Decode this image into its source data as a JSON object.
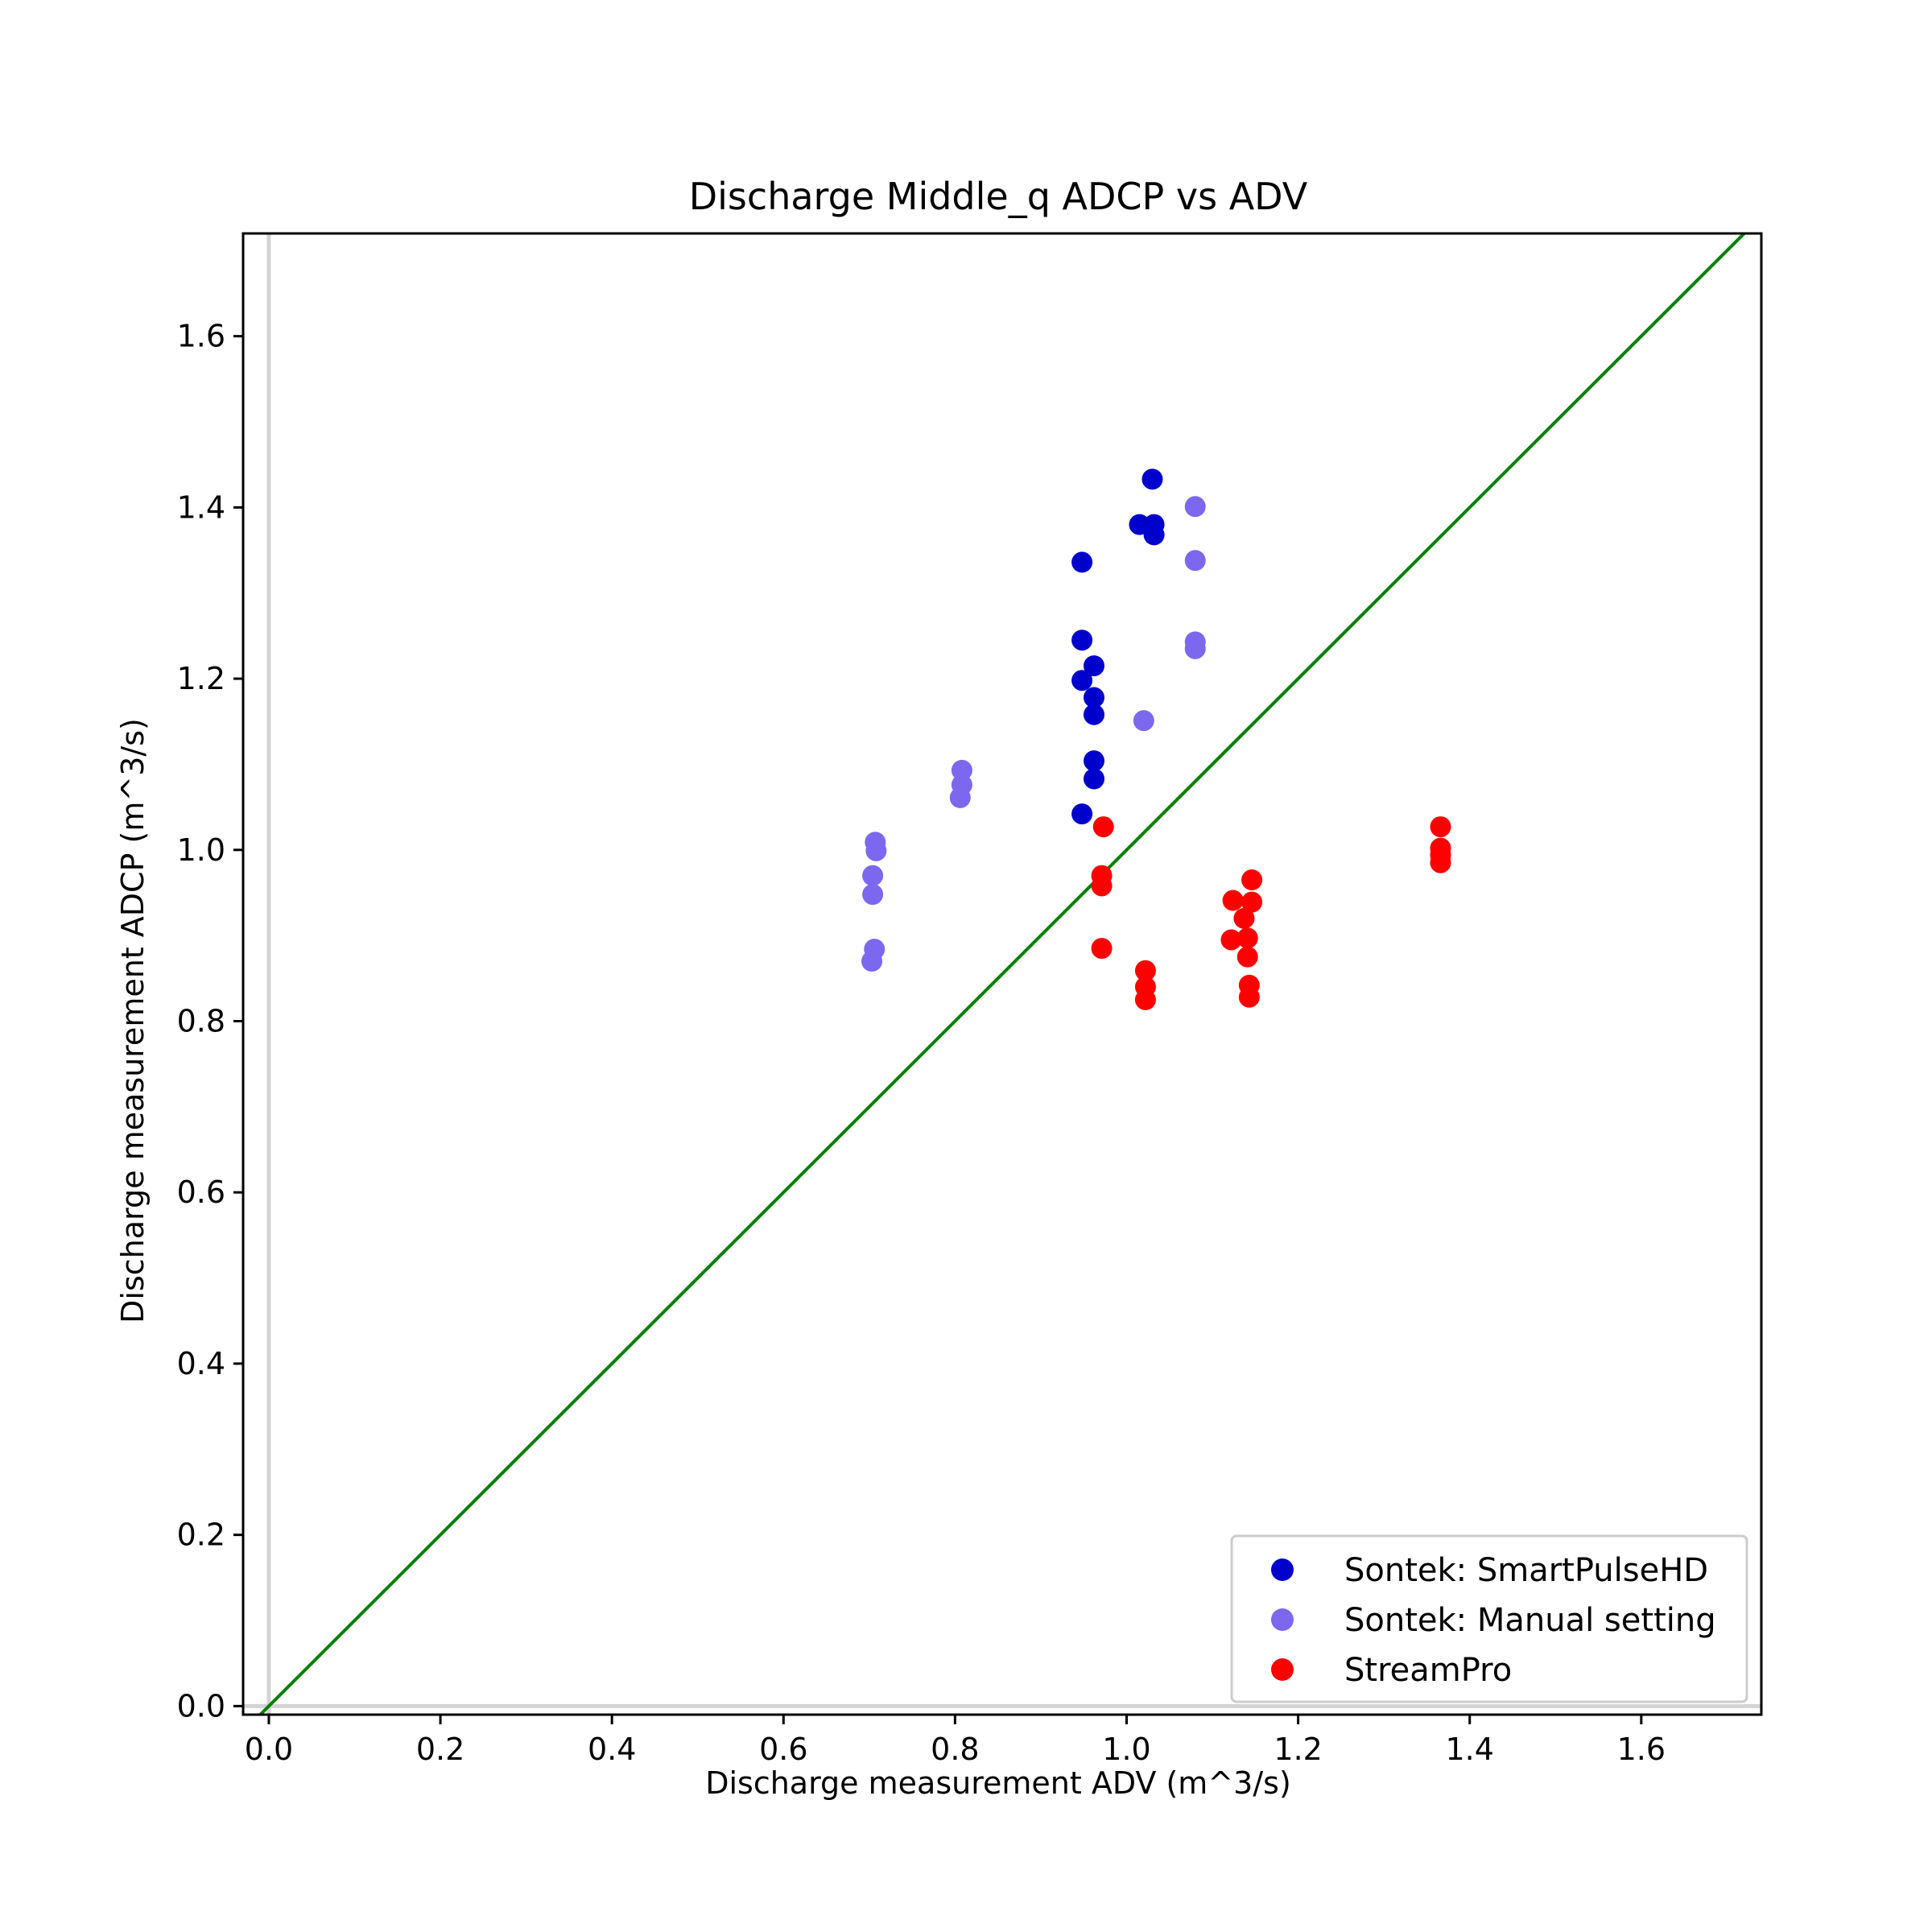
{
  "chart_data": {
    "type": "scatter",
    "title": "Discharge Middle_q ADCP  vs ADV",
    "xlabel": "Discharge measurement ADV (m^3/s)",
    "ylabel": "Discharge measurement ADCP (m^3/s)",
    "xlim": [
      -0.03,
      1.74
    ],
    "ylim": [
      -0.01,
      1.72
    ],
    "xticks": [
      "0.0",
      "0.2",
      "0.4",
      "0.6",
      "0.8",
      "1.0",
      "1.2",
      "1.4",
      "1.6"
    ],
    "yticks": [
      "0.0",
      "0.2",
      "0.4",
      "0.6",
      "0.8",
      "1.0",
      "1.2",
      "1.4",
      "1.6"
    ],
    "grid": false,
    "legend_position": "bottom-right",
    "reference_lines": [
      {
        "kind": "identity",
        "color": "#008000"
      },
      {
        "kind": "x=0",
        "color": "#d3d3d3"
      },
      {
        "kind": "y=0",
        "color": "#d3d3d3"
      }
    ],
    "series": [
      {
        "name": "Sontek: SmartPulseHD",
        "color": "#0000cd",
        "x": [
          1.03,
          1.015,
          1.032,
          1.032,
          0.948,
          0.948,
          0.962,
          0.948,
          0.962,
          0.962,
          0.962,
          0.962,
          0.948
        ],
        "y": [
          1.433,
          1.38,
          1.38,
          1.368,
          1.336,
          1.245,
          1.215,
          1.198,
          1.178,
          1.158,
          1.104,
          1.083,
          1.042
        ]
      },
      {
        "name": "Sontek: Manual setting",
        "color": "#7b68ee",
        "x": [
          1.08,
          1.08,
          1.08,
          1.08,
          1.02,
          0.808,
          0.808,
          0.806,
          0.707,
          0.708,
          0.704,
          0.704,
          0.706,
          0.703
        ],
        "y": [
          1.401,
          1.338,
          1.243,
          1.235,
          1.151,
          1.093,
          1.076,
          1.061,
          1.009,
          0.999,
          0.97,
          0.948,
          0.884,
          0.87
        ]
      },
      {
        "name": "StreamPro",
        "color": "#ff0000",
        "x": [
          0.973,
          0.971,
          0.971,
          0.971,
          1.022,
          1.022,
          1.022,
          1.146,
          1.124,
          1.146,
          1.137,
          1.122,
          1.141,
          1.141,
          1.143,
          1.143,
          1.366,
          1.366,
          1.366,
          1.366
        ],
        "y": [
          1.027,
          0.97,
          0.958,
          0.885,
          0.859,
          0.84,
          0.825,
          0.965,
          0.941,
          0.939,
          0.92,
          0.895,
          0.897,
          0.875,
          0.842,
          0.828,
          1.027,
          1.002,
          0.994,
          0.985
        ]
      }
    ]
  }
}
